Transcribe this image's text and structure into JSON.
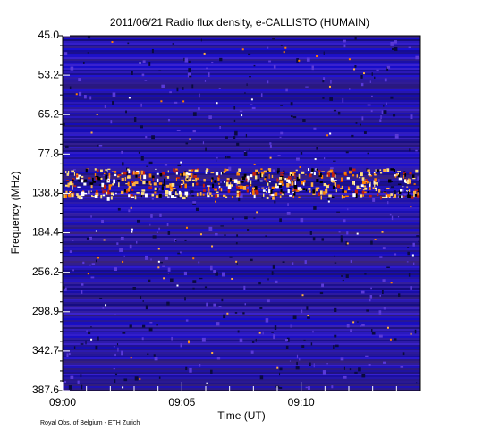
{
  "chart_data": {
    "type": "spectrogram",
    "title": "2011/06/21  Radio flux density, e-CALLISTO (HUMAIN)",
    "x_label": "Time (UT)",
    "y_label": "Frequency (MHz)",
    "xticks": [
      "09:00",
      "09:05",
      "09:10"
    ],
    "yticks": [
      "45.0",
      "53.2",
      "65.2",
      "77.8",
      "138.8",
      "184.4",
      "256.2",
      "298.9",
      "342.7",
      "387.6"
    ]
  },
  "footer": "Royal Obs. of Belgium - ETH Zurich"
}
